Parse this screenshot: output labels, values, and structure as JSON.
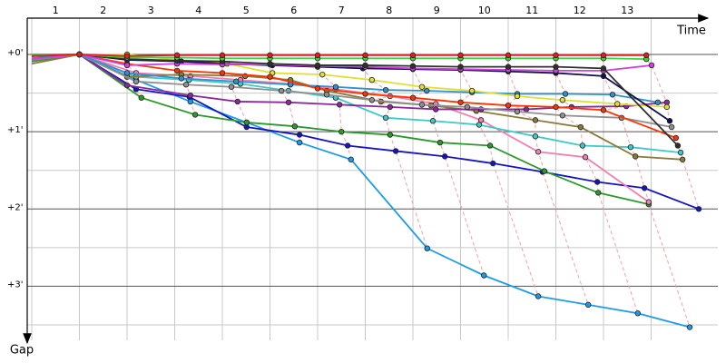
{
  "chart_data": {
    "type": "line",
    "x_label": "Time",
    "y_label": "Gap",
    "xlim": [
      0,
      14.4
    ],
    "ylim": [
      -0.47,
      3.7
    ],
    "y_inverted": true,
    "grid": true,
    "xticks": [
      {
        "value": 0.5,
        "label": "1"
      },
      {
        "value": 1.5,
        "label": "2"
      },
      {
        "value": 2.5,
        "label": "3"
      },
      {
        "value": 3.5,
        "label": "4"
      },
      {
        "value": 4.5,
        "label": "5"
      },
      {
        "value": 5.5,
        "label": "6"
      },
      {
        "value": 6.5,
        "label": "7"
      },
      {
        "value": 7.5,
        "label": "8"
      },
      {
        "value": 8.5,
        "label": "9"
      },
      {
        "value": 9.5,
        "label": "10"
      },
      {
        "value": 10.5,
        "label": "11"
      },
      {
        "value": 11.5,
        "label": "12"
      },
      {
        "value": 12.5,
        "label": "13"
      }
    ],
    "xgrid": [
      0,
      1,
      2,
      3,
      4,
      5,
      6,
      7,
      8,
      9,
      10,
      11,
      12,
      13
    ],
    "yticks": [
      {
        "value": 0,
        "label": "+0'"
      },
      {
        "value": 1,
        "label": "+1'"
      },
      {
        "value": 2,
        "label": "+2'"
      },
      {
        "value": 3,
        "label": "+3'"
      }
    ],
    "minor_yticks": [
      0.5,
      1.5,
      2.5,
      3.5
    ],
    "series": [
      {
        "color": "#1e9be8",
        "x": [
          0,
          1,
          2.19,
          3.33,
          4.51,
          5.62,
          6.7,
          8.3,
          9.49,
          10.63,
          11.68,
          12.72,
          13.81
        ],
        "values": [
          0.09,
          0,
          0.33,
          0.61,
          0.88,
          1.14,
          1.36,
          2.51,
          2.86,
          3.13,
          3.24,
          3.35,
          3.53
        ]
      },
      {
        "color": "#1414c0",
        "x": [
          0,
          1,
          2.19,
          3.31,
          4.51,
          5.62,
          6.63,
          7.64,
          8.67,
          9.68,
          10.72,
          11.87,
          12.86,
          14
        ],
        "values": [
          0.06,
          0,
          0.45,
          0.55,
          0.94,
          1.04,
          1.18,
          1.25,
          1.32,
          1.41,
          1.52,
          1.65,
          1.73,
          2
        ]
      },
      {
        "color": "#2a9a2a",
        "x": [
          0,
          1,
          2.3,
          3.43,
          4.51,
          5.52,
          6.5,
          7.52,
          8.57,
          9.62,
          10.76,
          11.89,
          12.95
        ],
        "values": [
          0.09,
          0,
          0.56,
          0.78,
          0.88,
          0.93,
          1,
          1.04,
          1.14,
          1.18,
          1.51,
          1.79,
          1.94
        ]
      },
      {
        "color": "#f080b0",
        "x": [
          0,
          1,
          2.19,
          3.33,
          4.38,
          5.43,
          6.38,
          7.52,
          8.48,
          9.43,
          10.63,
          11.62,
          12.95
        ],
        "values": [
          0.04,
          0,
          0.24,
          0.28,
          0.33,
          0.38,
          0.45,
          0.54,
          0.64,
          0.85,
          1.26,
          1.33,
          1.91
        ]
      },
      {
        "color": "#40c8c8",
        "x": [
          0,
          1,
          2.19,
          3.3,
          4.38,
          5.39,
          6.38,
          7.43,
          8.42,
          9.39,
          10.57,
          11.56,
          12.57,
          13.62
        ],
        "values": [
          0.06,
          0,
          0.29,
          0.33,
          0.38,
          0.47,
          0.56,
          0.82,
          0.86,
          0.91,
          1.06,
          1.18,
          1.2,
          1.27
        ]
      },
      {
        "color": "#8c7a3a",
        "x": [
          0,
          1,
          2,
          3.14,
          4.48,
          5.43,
          6.19,
          7.33,
          8.38,
          9.33,
          10.57,
          11.52,
          12.67,
          13.66
        ],
        "values": [
          0.12,
          0,
          0.29,
          0.26,
          0.28,
          0.33,
          0.47,
          0.61,
          0.66,
          0.73,
          0.85,
          0.94,
          1.32,
          1.36
        ]
      },
      {
        "color": "#8a2a9a",
        "x": [
          0,
          1,
          2,
          3.33,
          4.32,
          5.39,
          6.46,
          7.52,
          8.48,
          9.43,
          10.38,
          11.33,
          12.48,
          13.33
        ],
        "values": [
          0.02,
          0,
          0.4,
          0.53,
          0.61,
          0.62,
          0.65,
          0.68,
          0.71,
          0.71,
          0.71,
          0.68,
          0.67,
          0.62
        ]
      },
      {
        "color": "#909090",
        "x": [
          0,
          1,
          2.19,
          3.24,
          4.19,
          5.24,
          6.19,
          7.14,
          8.19,
          9.14,
          10.19,
          11.14,
          12.38,
          13.43
        ],
        "values": [
          0.07,
          0,
          0.35,
          0.39,
          0.42,
          0.47,
          0.52,
          0.59,
          0.65,
          0.68,
          0.74,
          0.79,
          0.82,
          0.94
        ]
      },
      {
        "color": "#3090d0",
        "x": [
          0,
          1,
          2,
          3.14,
          4.29,
          5.43,
          6.38,
          7.43,
          8.29,
          9.24,
          10.19,
          11.2,
          12.19,
          13.14
        ],
        "values": [
          0.05,
          0,
          0.24,
          0.31,
          0.35,
          0.39,
          0.42,
          0.46,
          0.47,
          0.49,
          0.51,
          0.51,
          0.52,
          0.62
        ]
      },
      {
        "color": "#e0e030",
        "x": [
          0,
          1,
          2,
          3.05,
          4.1,
          5.05,
          6.1,
          7.14,
          8.19,
          9.24,
          10.19,
          11.14,
          12.29,
          13.33
        ],
        "values": [
          0,
          0,
          0,
          0.07,
          0.12,
          0.24,
          0.26,
          0.33,
          0.42,
          0.47,
          0.54,
          0.59,
          0.64,
          0.68
        ]
      },
      {
        "color": "#ff3300",
        "x": [
          0,
          1,
          2,
          3.05,
          4,
          5,
          6,
          7,
          8,
          9,
          10,
          11,
          12,
          13.52
        ],
        "values": [
          0.02,
          0,
          0.12,
          0.21,
          0.24,
          0.29,
          0.44,
          0.51,
          0.56,
          0.62,
          0.66,
          0.68,
          0.72,
          1.08
        ]
      },
      {
        "color": "#101050",
        "x": [
          0,
          1,
          2,
          3.14,
          4,
          5.05,
          6,
          6.95,
          8,
          9,
          10,
          11,
          12,
          13.39
        ],
        "values": [
          0.02,
          0,
          0.07,
          0.09,
          0.12,
          0.14,
          0.16,
          0.18,
          0.19,
          0.2,
          0.22,
          0.24,
          0.28,
          0.86
        ]
      },
      {
        "color": "#d040e0",
        "x": [
          0,
          1,
          2,
          3.05,
          4,
          5,
          6,
          7,
          8,
          9,
          10,
          11,
          12,
          13.01
        ],
        "values": [
          0.06,
          0,
          0.14,
          0.12,
          0.13,
          0.13,
          0.15,
          0.16,
          0.18,
          0.19,
          0.2,
          0.21,
          0.21,
          0.14
        ]
      },
      {
        "color": "#303030",
        "x": [
          0,
          1,
          2,
          3.05,
          4,
          5,
          6,
          7,
          8,
          9,
          10,
          11,
          12,
          13.56
        ],
        "values": [
          0,
          0,
          0.06,
          0.08,
          0.09,
          0.12,
          0.14,
          0.14,
          0.15,
          0.16,
          0.16,
          0.16,
          0.18,
          1.18
        ]
      },
      {
        "color": "#40d040",
        "x": [
          0,
          1,
          2,
          3.05,
          4,
          5,
          6,
          7,
          8,
          9,
          10,
          11,
          12,
          12.9
        ],
        "values": [
          0,
          0,
          0.04,
          0.04,
          0.05,
          0.05,
          0.05,
          0.05,
          0.05,
          0.05,
          0.05,
          0.05,
          0.05,
          0.06
        ]
      },
      {
        "color": "#e02020",
        "x": [
          0,
          1,
          2,
          3.05,
          4,
          5,
          6,
          7,
          8,
          9,
          10,
          11,
          12,
          12.9
        ],
        "values": [
          0.02,
          0,
          0.02,
          0.01,
          0.01,
          0.01,
          0.01,
          0.01,
          0.01,
          0.01,
          0.01,
          0.01,
          0.01,
          0.01
        ]
      }
    ]
  }
}
